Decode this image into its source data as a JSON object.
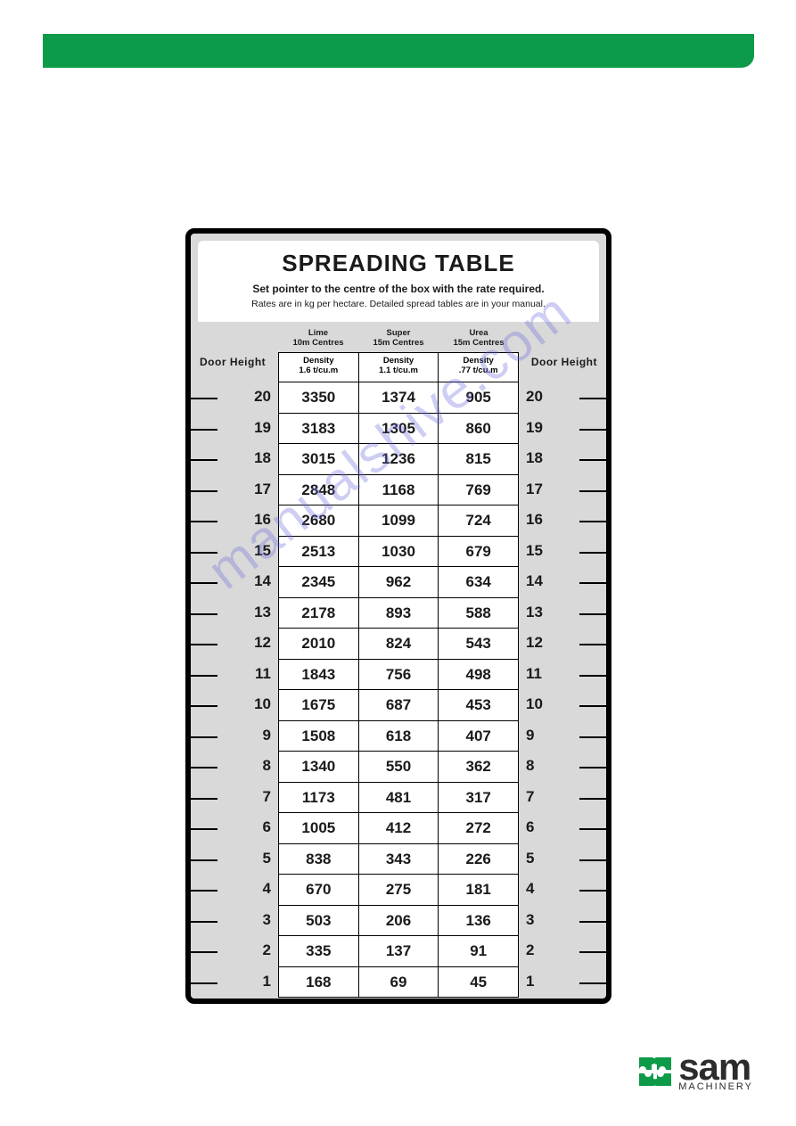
{
  "banner_color": "#0e9b49",
  "card": {
    "title": "SPREADING TABLE",
    "subtitle1": "Set pointer to the centre of the box with the rate required.",
    "subtitle2": "Rates are in kg per hectare. Detailed spread tables are in your manual.",
    "door_height_label": "Door Height",
    "columns": [
      {
        "name": "Lime",
        "centres": "10m Centres",
        "density": "Density\n1.6 t/cu.m"
      },
      {
        "name": "Super",
        "centres": "15m Centres",
        "density": "Density\n1.1 t/cu.m"
      },
      {
        "name": "Urea",
        "centres": "15m Centres",
        "density": "Density\n.77 t/cu.m"
      }
    ],
    "door_heights": [
      20,
      19,
      18,
      17,
      16,
      15,
      14,
      13,
      12,
      11,
      10,
      9,
      8,
      7,
      6,
      5,
      4,
      3,
      2,
      1
    ],
    "values": [
      [
        3350,
        1374,
        905
      ],
      [
        3183,
        1305,
        860
      ],
      [
        3015,
        1236,
        815
      ],
      [
        2848,
        1168,
        769
      ],
      [
        2680,
        1099,
        724
      ],
      [
        2513,
        1030,
        679
      ],
      [
        2345,
        962,
        634
      ],
      [
        2178,
        893,
        588
      ],
      [
        2010,
        824,
        543
      ],
      [
        1843,
        756,
        498
      ],
      [
        1675,
        687,
        453
      ],
      [
        1508,
        618,
        407
      ],
      [
        1340,
        550,
        362
      ],
      [
        1173,
        481,
        317
      ],
      [
        1005,
        412,
        272
      ],
      [
        838,
        343,
        226
      ],
      [
        670,
        275,
        181
      ],
      [
        503,
        206,
        136
      ],
      [
        335,
        137,
        91
      ],
      [
        168,
        69,
        45
      ]
    ],
    "bg_color": "#d9d9d9",
    "border_color": "#000000",
    "cell_bg": "#ffffff",
    "text_color": "#1a1a1a"
  },
  "watermark": "manualshive.com",
  "watermark_color": "#6a6adf",
  "logo": {
    "brand": "sam",
    "sub": "MACHINERY",
    "icon_color": "#0e9b49",
    "text_color": "#2c2c2c"
  }
}
